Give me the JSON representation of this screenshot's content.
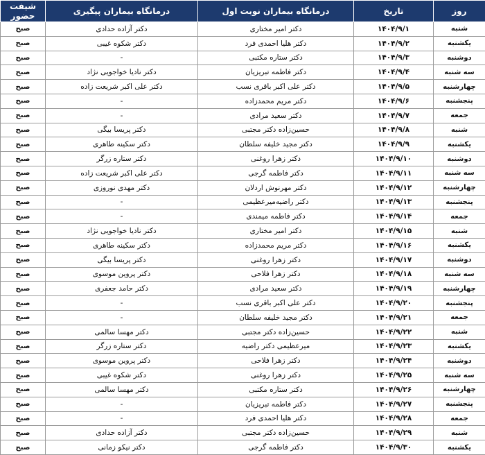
{
  "headers": [
    "روز",
    "تاریخ",
    "درمانگاه بیماران نوبت اول",
    "درمانگاه بیماران پیگیری",
    "شیفت حضور"
  ],
  "header_color": "#1d3a6e",
  "rows": [
    {
      "day": "شنبه",
      "date": "۱۴۰۴/۹/۱",
      "first": "دکتر امیر مختاری",
      "followup": "دکتر آزاده حدادی",
      "shift": "صبح"
    },
    {
      "day": "یکشنبه",
      "date": "۱۴۰۴/۹/۲",
      "first": "دکتر هلیا احمدی فرد",
      "followup": "دکتر شکوه غیبی",
      "shift": "صبح"
    },
    {
      "day": "دوشنبه",
      "date": "۱۴۰۴/۹/۳",
      "first": "دکتر ستاره مکتبی",
      "followup": "-",
      "shift": "صبح"
    },
    {
      "day": "سه شنبه",
      "date": "۱۴۰۴/۹/۴",
      "first": "دکتر فاطمه تبریزیان",
      "followup": "دکتر نادیا خواجویی نژاد",
      "shift": "صبح"
    },
    {
      "day": "چهارشنبه",
      "date": "۱۴۰۴/۹/۵",
      "first": "دکتر علی اکبر باقری نسب",
      "followup": "دکتر علی اکبر شریعت زاده",
      "shift": "صبح"
    },
    {
      "day": "پنجشنبه",
      "date": "۱۴۰۴/۹/۶",
      "first": "دکتر مریم محمدزاده",
      "followup": "-",
      "shift": "صبح"
    },
    {
      "day": "جمعه",
      "date": "۱۴۰۴/۹/۷",
      "first": "دکتر سعید مرادی",
      "followup": "-",
      "shift": "صبح"
    },
    {
      "day": "شنبه",
      "date": "۱۴۰۴/۹/۸",
      "first": "حسین‌زاده دکتر مجتبی",
      "followup": "دکتر پریسا بیگی",
      "shift": "صبح"
    },
    {
      "day": "یکشنبه",
      "date": "۱۴۰۴/۹/۹",
      "first": "دکتر مجید خلیفه سلطان",
      "followup": "دکتر سکینه طاهری",
      "shift": "صبح"
    },
    {
      "day": "دوشنبه",
      "date": "۱۴۰۴/۹/۱۰",
      "first": "دکتر زهرا روغنی",
      "followup": "دکتر ستاره زرگر",
      "shift": "صبح"
    },
    {
      "day": "سه شنبه",
      "date": "۱۴۰۴/۹/۱۱",
      "first": "دکتر فاطمه گرجی",
      "followup": "دکتر علی اکبر شریعت زاده",
      "shift": "صبح"
    },
    {
      "day": "چهارشنبه",
      "date": "۱۴۰۴/۹/۱۲",
      "first": "دکتر مهرنوش اردلان",
      "followup": "دکتر مهدی نوروزی",
      "shift": "صبح"
    },
    {
      "day": "پنجشنبه",
      "date": "۱۴۰۴/۹/۱۳",
      "first": "دکتر راضیه‌میرعظیمی",
      "followup": "-",
      "shift": "صبح"
    },
    {
      "day": "جمعه",
      "date": "۱۴۰۴/۹/۱۴",
      "first": "دکتر فاطمه میمندی",
      "followup": "-",
      "shift": "صبح"
    },
    {
      "day": "شنبه",
      "date": "۱۴۰۴/۹/۱۵",
      "first": "دکتر امیر مختاری",
      "followup": "دکتر نادیا خواجویی نژاد",
      "shift": "صبح"
    },
    {
      "day": "یکشنبه",
      "date": "۱۴۰۴/۹/۱۶",
      "first": "دکتر مریم محمدزاده",
      "followup": "دکتر سکینه طاهری",
      "shift": "صبح"
    },
    {
      "day": "دوشنبه",
      "date": "۱۴۰۴/۹/۱۷",
      "first": "دکتر زهرا روغنی",
      "followup": "دکتر پریسا بیگی",
      "shift": "صبح"
    },
    {
      "day": "سه شنبه",
      "date": "۱۴۰۴/۹/۱۸",
      "first": "دکتر زهرا فلاحی",
      "followup": "دکتر پروین موسوی",
      "shift": "صبح"
    },
    {
      "day": "چهارشنبه",
      "date": "۱۴۰۴/۹/۱۹",
      "first": "دکتر سعید مرادی",
      "followup": "دکتر حامد جعفری",
      "shift": "صبح"
    },
    {
      "day": "پنجشنبه",
      "date": "۱۴۰۴/۹/۲۰",
      "first": "دکتر علی اکبر باقری نسب",
      "followup": "-",
      "shift": "صبح"
    },
    {
      "day": "جمعه",
      "date": "۱۴۰۴/۹/۲۱",
      "first": "دکتر مجید خلیفه سلطان",
      "followup": "-",
      "shift": "صبح"
    },
    {
      "day": "شنبه",
      "date": "۱۴۰۴/۹/۲۲",
      "first": "حسین‌زاده دکتر مجتبی",
      "followup": "دکتر مهسا سالمی",
      "shift": "صبح"
    },
    {
      "day": "یکشنبه",
      "date": "۱۴۰۴/۹/۲۳",
      "first": "میرعظیمی دکتر راضیه",
      "followup": "دکتر ستاره زرگر",
      "shift": "صبح"
    },
    {
      "day": "دوشنبه",
      "date": "۱۴۰۴/۹/۲۴",
      "first": "دکتر زهرا فلاحی",
      "followup": "دکتر پروین موسوی",
      "shift": "صبح"
    },
    {
      "day": "سه شنبه",
      "date": "۱۴۰۴/۹/۲۵",
      "first": "دکتر زهرا روغنی",
      "followup": "دکتر شکوه غیبی",
      "shift": "صبح"
    },
    {
      "day": "چهارشنبه",
      "date": "۱۴۰۴/۹/۲۶",
      "first": "دکتر ستاره مکتبی",
      "followup": "دکتر مهسا سالمی",
      "shift": "صبح"
    },
    {
      "day": "پنجشنبه",
      "date": "۱۴۰۴/۹/۲۷",
      "first": "دکتر فاطمه تبریزیان",
      "followup": "-",
      "shift": "صبح"
    },
    {
      "day": "جمعه",
      "date": "۱۴۰۴/۹/۲۸",
      "first": "دکتر هلیا احمدی فرد",
      "followup": "-",
      "shift": "صبح"
    },
    {
      "day": "شنبه",
      "date": "۱۴۰۴/۹/۲۹",
      "first": "حسین‌زاده دکتر مجتبی",
      "followup": "دکتر آزاده حدادی",
      "shift": "صبح"
    },
    {
      "day": "یکشنبه",
      "date": "۱۴۰۴/۹/۳۰",
      "first": "دکتر فاطمه گرجی",
      "followup": "دکتر نیکو زمانی",
      "shift": "صبح"
    }
  ]
}
